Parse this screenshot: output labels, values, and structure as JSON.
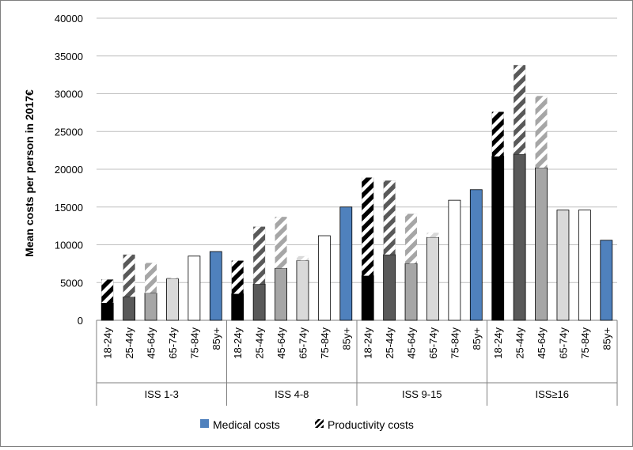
{
  "chart_data": {
    "type": "bar",
    "stacked": true,
    "ylabel": "Mean costs per person in 2017€",
    "ylim": [
      0,
      40000
    ],
    "yticks": [
      0,
      5000,
      10000,
      15000,
      20000,
      25000,
      30000,
      35000,
      40000
    ],
    "grid": true,
    "legend_position": "bottom",
    "groups": [
      "ISS 1-3",
      "ISS 4-8",
      "ISS 9-15",
      "ISS≥16"
    ],
    "age_categories": [
      "18-24y",
      "25-44y",
      "45-64y",
      "65-74y",
      "75-84y",
      "85y+"
    ],
    "category_colors": {
      "18-24y": "#000000",
      "25-44y": "#595959",
      "45-64y": "#a6a6a6",
      "65-74y": "#d9d9d9",
      "75-84y": "#ffffff",
      "85y+": "#4f81bd"
    },
    "series": [
      {
        "name": "Medical costs",
        "values": [
          [
            2300,
            3100,
            3600,
            5500,
            8500,
            9100
          ],
          [
            3500,
            4800,
            6900,
            7900,
            11200,
            15000
          ],
          [
            5900,
            8700,
            7500,
            11000,
            15900,
            17300
          ],
          [
            21700,
            22000,
            20200,
            14600,
            14600,
            10600
          ]
        ]
      },
      {
        "name": "Productivity costs",
        "values": [
          [
            3100,
            5600,
            4000,
            200,
            0,
            0
          ],
          [
            4400,
            7600,
            6800,
            600,
            0,
            0
          ],
          [
            13000,
            9800,
            6600,
            600,
            0,
            0
          ],
          [
            5900,
            11800,
            9500,
            0,
            0,
            0
          ]
        ]
      }
    ]
  }
}
